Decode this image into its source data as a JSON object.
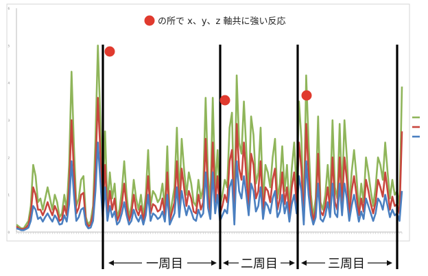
{
  "annotation": {
    "text": "の所で x、y、z 軸共に強い反応",
    "marker_color": "#e03a2e"
  },
  "periods": [
    {
      "label": "一周目"
    },
    {
      "label": "二周目"
    },
    {
      "label": "三周目"
    }
  ],
  "chart_data": {
    "type": "line",
    "title": "",
    "xlabel": "",
    "ylabel": "",
    "ylim": [
      0,
      6
    ],
    "yticks": [
      "0",
      "1",
      "2",
      "3",
      "4",
      "5",
      "6"
    ],
    "grid": false,
    "legend_position": "right",
    "colors": [
      "#8fb55a",
      "#c8453d",
      "#4a7fc0"
    ],
    "series": [
      {
        "name": "",
        "values": [
          0.2,
          0.15,
          0.1,
          0.1,
          0.2,
          0.3,
          0.7,
          1.8,
          1.5,
          0.8,
          0.9,
          0.6,
          0.9,
          1.2,
          0.9,
          0.6,
          1.0,
          0.8,
          0.4,
          0.5,
          1.0,
          0.6,
          1.8,
          4.3,
          2.3,
          0.7,
          0.9,
          1.4,
          1.5,
          0.4,
          0.2,
          0.3,
          0.7,
          2.5,
          5.0,
          3.1,
          0.9,
          2.7,
          0.7,
          1.6,
          0.9,
          1.3,
          0.4,
          0.6,
          1.1,
          1.9,
          1.0,
          0.4,
          0.7,
          1.4,
          0.9,
          0.6,
          1.0,
          0.4,
          1.0,
          2.2,
          0.7,
          1.1,
          1.0,
          0.8,
          0.9,
          1.3,
          0.6,
          2.3,
          0.4,
          0.8,
          1.2,
          2.8,
          0.9,
          2.5,
          1.7,
          1.0,
          1.6,
          1.3,
          0.8,
          0.7,
          1.4,
          0.9,
          1.2,
          3.6,
          1.5,
          0.8,
          3.6,
          1.2,
          2.2,
          0.7,
          1.0,
          1.4,
          1.2,
          2.8,
          3.2,
          0.4,
          4.2,
          2.4,
          2.1,
          3.5,
          2.2,
          1.0,
          3.1,
          2.6,
          1.3,
          1.6,
          2.8,
          0.8,
          1.8,
          1.6,
          1.2,
          2.0,
          2.5,
          0.9,
          1.3,
          2.3,
          1.1,
          1.8,
          0.6,
          1.7,
          2.4,
          1.1,
          3.5,
          2.5,
          0.4,
          4.2,
          2.4,
          1.0,
          0.4,
          0.9,
          3.1,
          0.8,
          0.6,
          1.0,
          1.8,
          0.9,
          3.0,
          1.2,
          0.9,
          2.9,
          1.0,
          3.0,
          2.0,
          0.7,
          1.6,
          2.2,
          1.5,
          0.6,
          1.3,
          0.8,
          2.0,
          1.6,
          1.1,
          0.7,
          1.2,
          2.0,
          1.8,
          1.4,
          2.4,
          1.6,
          0.9,
          1.4,
          1.0,
          1.1,
          0.7,
          3.9
        ]
      },
      {
        "name": "",
        "values": [
          0.15,
          0.1,
          0.08,
          0.08,
          0.12,
          0.2,
          0.5,
          1.2,
          1.0,
          0.6,
          0.6,
          0.45,
          0.6,
          0.8,
          0.6,
          0.45,
          0.7,
          0.55,
          0.3,
          0.35,
          0.7,
          0.45,
          1.2,
          3.0,
          1.6,
          0.5,
          0.65,
          1.0,
          1.05,
          0.3,
          0.15,
          0.2,
          0.5,
          1.7,
          3.6,
          2.2,
          0.6,
          1.8,
          0.5,
          1.1,
          0.6,
          0.9,
          0.3,
          0.45,
          0.75,
          1.3,
          0.7,
          0.3,
          0.5,
          1.0,
          0.6,
          0.45,
          0.7,
          0.3,
          0.7,
          1.5,
          0.5,
          0.75,
          0.7,
          0.55,
          0.6,
          0.9,
          0.45,
          1.6,
          0.3,
          0.55,
          0.8,
          1.9,
          0.6,
          1.7,
          1.2,
          0.7,
          1.1,
          0.9,
          0.55,
          0.5,
          1.0,
          0.6,
          0.8,
          2.5,
          1.0,
          0.55,
          2.4,
          0.8,
          1.5,
          0.5,
          0.7,
          1.0,
          0.8,
          1.9,
          2.2,
          0.3,
          2.9,
          1.7,
          1.4,
          2.4,
          1.5,
          0.7,
          2.1,
          1.8,
          0.9,
          1.1,
          1.9,
          0.55,
          1.2,
          1.1,
          0.8,
          1.4,
          1.7,
          0.6,
          0.9,
          1.6,
          0.75,
          1.2,
          0.45,
          1.2,
          1.6,
          0.75,
          2.4,
          1.7,
          0.3,
          2.9,
          1.6,
          0.7,
          0.3,
          0.6,
          2.1,
          0.55,
          0.45,
          0.7,
          1.2,
          0.6,
          2.0,
          0.8,
          0.6,
          2.0,
          0.7,
          2.0,
          1.4,
          0.5,
          1.1,
          1.5,
          1.0,
          0.45,
          0.9,
          0.55,
          1.4,
          1.1,
          0.75,
          0.5,
          0.8,
          1.4,
          1.2,
          0.95,
          1.6,
          1.1,
          0.6,
          0.95,
          0.7,
          0.75,
          0.5,
          2.7
        ]
      },
      {
        "name": "",
        "values": [
          0.1,
          0.08,
          0.05,
          0.05,
          0.08,
          0.12,
          0.3,
          0.7,
          0.6,
          0.35,
          0.4,
          0.28,
          0.4,
          0.5,
          0.38,
          0.28,
          0.45,
          0.35,
          0.2,
          0.22,
          0.45,
          0.28,
          0.75,
          1.9,
          1.0,
          0.3,
          0.4,
          0.6,
          0.65,
          0.2,
          0.1,
          0.12,
          0.3,
          1.1,
          2.4,
          1.4,
          0.4,
          1.2,
          0.3,
          0.7,
          0.4,
          0.55,
          0.2,
          0.28,
          0.5,
          0.8,
          0.45,
          0.2,
          0.3,
          0.6,
          0.4,
          0.28,
          0.45,
          0.2,
          0.45,
          1.0,
          0.3,
          0.5,
          0.45,
          0.35,
          0.4,
          0.55,
          0.28,
          1.0,
          0.2,
          0.35,
          0.5,
          1.2,
          0.4,
          1.1,
          0.75,
          0.45,
          0.7,
          0.55,
          0.35,
          0.3,
          0.6,
          0.4,
          0.5,
          1.6,
          0.65,
          0.35,
          1.6,
          0.5,
          1.0,
          0.3,
          0.45,
          0.6,
          0.5,
          1.2,
          1.4,
          0.2,
          1.9,
          1.1,
          0.9,
          1.5,
          1.0,
          0.45,
          1.3,
          1.1,
          0.55,
          0.7,
          1.2,
          0.35,
          0.8,
          0.7,
          0.5,
          0.9,
          1.1,
          0.4,
          0.55,
          1.0,
          0.5,
          0.8,
          0.28,
          0.75,
          1.0,
          0.5,
          1.5,
          1.1,
          0.2,
          1.9,
          1.0,
          0.45,
          0.2,
          0.4,
          1.3,
          0.35,
          0.28,
          0.45,
          0.8,
          0.4,
          1.3,
          0.5,
          0.4,
          1.3,
          0.45,
          1.3,
          0.9,
          0.3,
          0.7,
          1.0,
          0.65,
          0.28,
          0.55,
          0.35,
          0.9,
          0.7,
          0.5,
          0.3,
          0.5,
          0.9,
          0.8,
          0.6,
          1.0,
          0.7,
          0.4,
          0.6,
          0.45,
          0.5,
          0.3,
          1.1
        ]
      }
    ]
  }
}
